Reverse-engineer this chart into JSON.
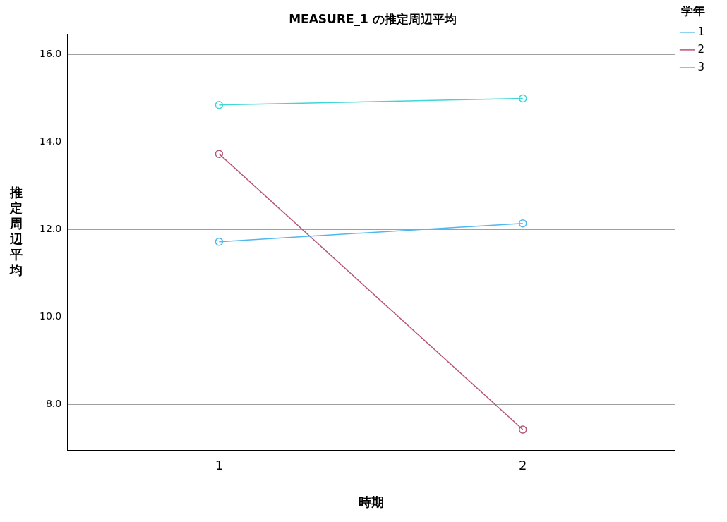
{
  "chart_data": {
    "type": "line",
    "title": "MEASURE_1 の推定周辺平均",
    "xlabel": "時期",
    "ylabel": "推定周辺平均",
    "legend_title": "学年",
    "categories": [
      "1",
      "2"
    ],
    "series": [
      {
        "name": "1",
        "color": "#4fb8f0",
        "values": [
          11.72,
          12.14
        ]
      },
      {
        "name": "2",
        "color": "#b8537a",
        "values": [
          13.73,
          7.42
        ]
      },
      {
        "name": "3",
        "color": "#3fd6d6",
        "values": [
          14.85,
          15.0
        ]
      }
    ],
    "ylim": [
      6.94,
      16.47
    ],
    "yticks": [
      {
        "value": 8,
        "label": "8.0"
      },
      {
        "value": 10,
        "label": "10.0"
      },
      {
        "value": 12,
        "label": "12.0"
      },
      {
        "value": 14,
        "label": "14.0"
      },
      {
        "value": 16,
        "label": "16.0"
      }
    ],
    "grid": "y",
    "legend": "top right",
    "marker": "circle",
    "line_style": "solid"
  }
}
